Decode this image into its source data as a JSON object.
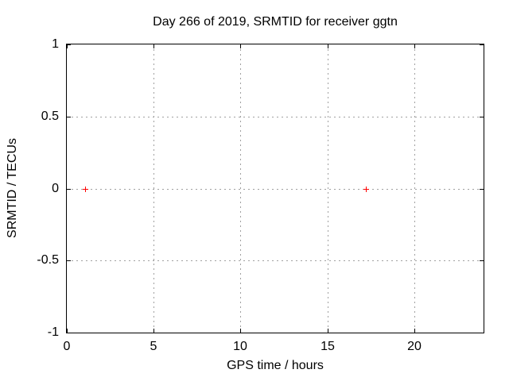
{
  "chart_data": {
    "type": "scatter",
    "title": "Day 266 of 2019, SRMTID for receiver ggtn",
    "xlabel": "GPS time / hours",
    "ylabel": "SRMTID / TECUs",
    "xlim": [
      0,
      24
    ],
    "ylim": [
      -1,
      1
    ],
    "xticks": {
      "values": [
        0,
        5,
        10,
        15,
        20
      ],
      "labels": [
        "0",
        "5",
        "10",
        "15",
        "20"
      ]
    },
    "yticks": {
      "values": [
        1,
        0.5,
        0,
        -0.5,
        -1
      ],
      "labels": [
        "1",
        "0.5",
        "0",
        "-0.5",
        "-1"
      ]
    },
    "grid": true,
    "legend": "none",
    "series": [
      {
        "name": "SRMTID",
        "marker": "plus",
        "color": "#ff0000",
        "points": [
          {
            "x": 1.05,
            "y": 0.0
          },
          {
            "x": 17.2,
            "y": 0.0
          }
        ]
      }
    ],
    "colors": {
      "background": "#ffffff",
      "border": "#000000",
      "grid": "#a0a0a0",
      "text": "#000000"
    }
  }
}
